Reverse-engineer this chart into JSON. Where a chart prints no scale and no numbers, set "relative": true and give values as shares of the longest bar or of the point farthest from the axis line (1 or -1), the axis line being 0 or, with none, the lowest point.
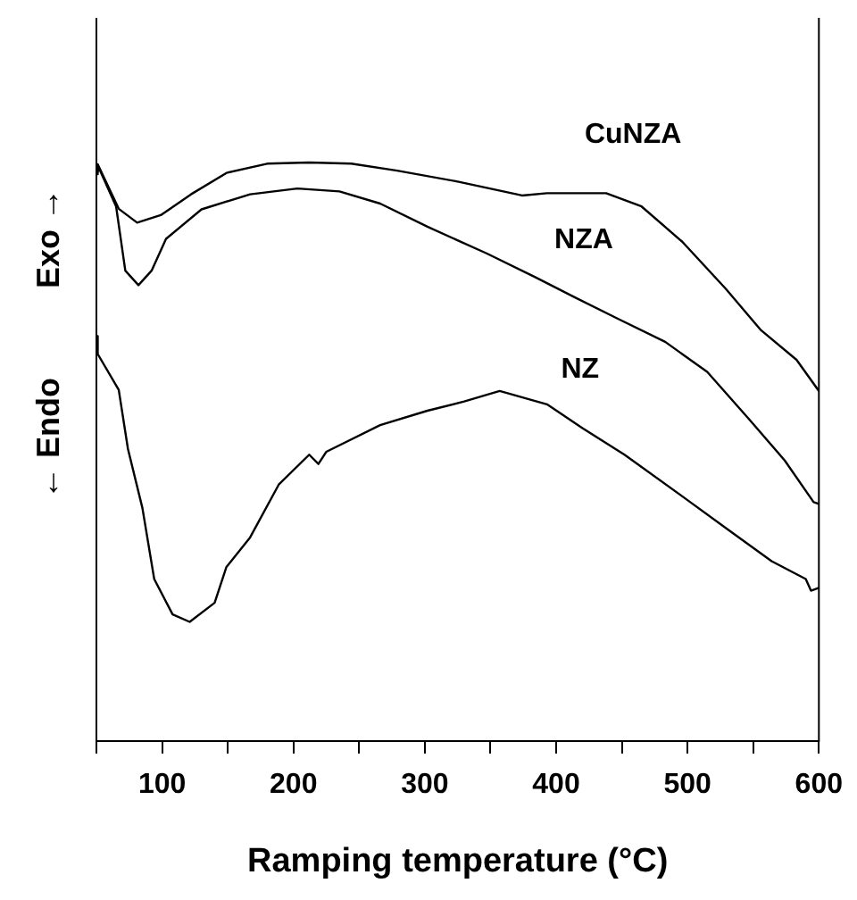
{
  "chart_data": {
    "type": "line",
    "relative": true,
    "xlabel": "Ramping temperature (°C)",
    "ylabel": "← Endo          Exo →",
    "xlim": [
      50,
      600
    ],
    "xticks": [
      {
        "value": 50,
        "label": null
      },
      100,
      {
        "value": 150,
        "label": null
      },
      200,
      {
        "value": 250,
        "label": null
      },
      300,
      {
        "value": 350,
        "label": null
      },
      400,
      {
        "value": 450,
        "label": null
      },
      500,
      {
        "value": 550,
        "label": null
      },
      600
    ],
    "grid": false,
    "legend": false,
    "tick_labels": "x",
    "marker": "none",
    "line_style": "solid",
    "series": [
      {
        "name": "CuNZA",
        "color": "#000000",
        "x": [
          50,
          51,
          67,
          81,
          99,
          122,
          149,
          180,
          212,
          244,
          279,
          325,
          374,
          393,
          438,
          465,
          496,
          529,
          556,
          583,
          600
        ],
        "values": [
          0.98,
          0.997,
          0.92,
          0.896,
          0.909,
          0.945,
          0.982,
          0.998,
          1.0,
          0.998,
          0.986,
          0.967,
          0.943,
          0.947,
          0.947,
          0.924,
          0.863,
          0.782,
          0.71,
          0.659,
          0.605
        ]
      },
      {
        "name": "NZA",
        "color": "#000000",
        "x": [
          50,
          52,
          65,
          72,
          82,
          92,
          103,
          130,
          167,
          203,
          235,
          266,
          302,
          347,
          384,
          415,
          447,
          483,
          515,
          547,
          574,
          596,
          600
        ],
        "values": [
          0.98,
          0.99,
          0.924,
          0.813,
          0.788,
          0.813,
          0.868,
          0.919,
          0.945,
          0.955,
          0.95,
          0.929,
          0.889,
          0.843,
          0.802,
          0.766,
          0.73,
          0.69,
          0.638,
          0.556,
          0.485,
          0.413,
          0.41
        ]
      },
      {
        "name": "NZ",
        "color": "#000000",
        "x": [
          50,
          51,
          67,
          74,
          85,
          94,
          108,
          121,
          140,
          149,
          167,
          189,
          212,
          219,
          225,
          266,
          302,
          330,
          357,
          393,
          420,
          452,
          496,
          533,
          564,
          590,
          594,
          600
        ],
        "values": [
          0.7,
          0.669,
          0.607,
          0.505,
          0.403,
          0.28,
          0.219,
          0.206,
          0.239,
          0.301,
          0.352,
          0.444,
          0.495,
          0.479,
          0.5,
          0.546,
          0.571,
          0.587,
          0.605,
          0.582,
          0.541,
          0.495,
          0.423,
          0.362,
          0.311,
          0.28,
          0.26,
          0.265
        ]
      }
    ]
  }
}
